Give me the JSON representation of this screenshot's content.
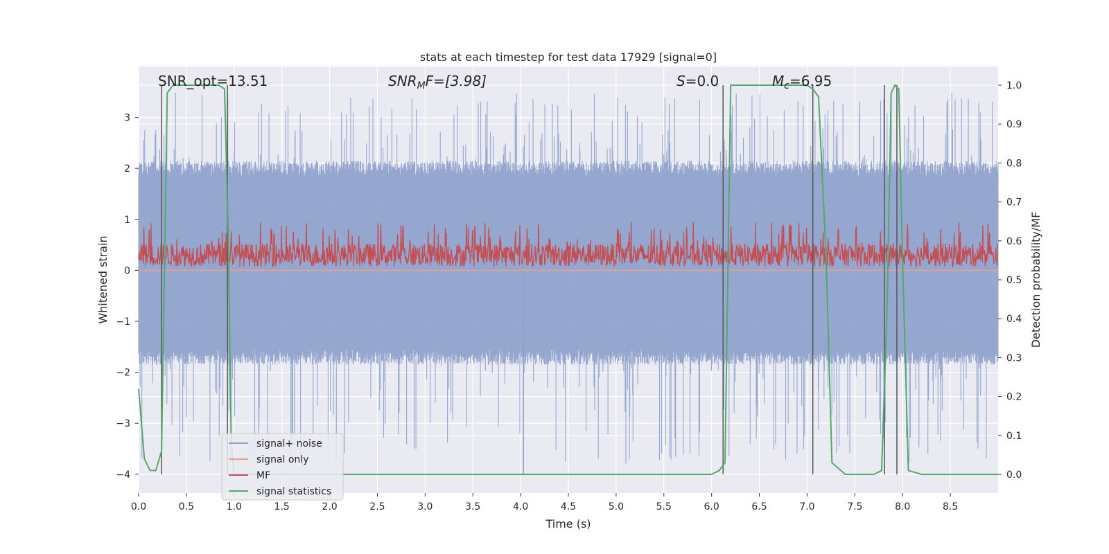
{
  "chart_data": {
    "type": "line",
    "title": "stats at each timestep for test data 17929 [signal=0]",
    "xlabel": "Time (s)",
    "ylabel": "Whitened strain",
    "ylabel_right": "Detection probability/MF",
    "xlim": [
      0.0,
      9.0
    ],
    "ylim": [
      -4.37,
      4.0
    ],
    "ylim_right": [
      -0.048,
      1.048
    ],
    "x_ticks": [
      "0.0",
      "0.5",
      "1.0",
      "1.5",
      "2.0",
      "2.5",
      "3.0",
      "3.5",
      "4.0",
      "4.5",
      "5.0",
      "5.5",
      "6.0",
      "6.5",
      "7.0",
      "7.5",
      "8.0",
      "8.5"
    ],
    "y_ticks": [
      "3",
      "2",
      "1",
      "0",
      "−1",
      "−2",
      "−3",
      "−4"
    ],
    "y_ticks_right": [
      "1.0",
      "0.9",
      "0.8",
      "0.7",
      "0.6",
      "0.5",
      "0.4",
      "0.3",
      "0.2",
      "0.1",
      "0.0"
    ],
    "annotations": {
      "snr_opt": "SNR_opt=13.51",
      "snr_mf_main": "SNR",
      "snr_mf_sub": "M",
      "snr_mf_tail": "F=[3.98]",
      "s_main": "S",
      "s_tail": "=0.0",
      "mc_main": "M",
      "mc_sub": "c",
      "mc_tail": "=6.95"
    },
    "noise": {
      "name": "signal+ noise",
      "color": "#8da0cb",
      "band": [
        -1.7,
        2.0
      ],
      "max_peak": 3.5,
      "min_trough": -3.8,
      "spike_x": 4.03,
      "spike_min": -4.0
    },
    "signal_only": {
      "name": "signal only",
      "color": "#e8a08a",
      "value": 0.0
    },
    "mf": {
      "name": "MF",
      "color": "#c44e52",
      "base": 0.3,
      "band": [
        0.05,
        0.95
      ]
    },
    "signal_statistics": {
      "name": "signal statistics",
      "color": "#55a868",
      "x": [
        0.0,
        0.06,
        0.12,
        0.18,
        0.24,
        0.3,
        0.36,
        0.42,
        0.48,
        0.54,
        0.6,
        0.66,
        0.72,
        0.78,
        0.84,
        0.9,
        0.94,
        0.97,
        1.0,
        1.06,
        1.12,
        1.5,
        2.0,
        3.0,
        4.0,
        5.0,
        6.0,
        6.08,
        6.14,
        6.2,
        6.5,
        6.8,
        7.0,
        7.06,
        7.12,
        7.2,
        7.26,
        7.4,
        7.6,
        7.7,
        7.78,
        7.84,
        7.88,
        7.92,
        7.96,
        8.0,
        8.06,
        8.2,
        8.5,
        9.0
      ],
      "y": [
        0.22,
        0.04,
        0.01,
        0.01,
        0.06,
        0.98,
        1.0,
        1.0,
        1.0,
        1.0,
        1.0,
        1.0,
        1.0,
        1.0,
        1.0,
        0.99,
        0.6,
        0.08,
        0.0,
        0.0,
        0.0,
        0.0,
        0.0,
        0.0,
        0.0,
        0.0,
        0.0,
        0.01,
        0.03,
        1.0,
        1.0,
        1.0,
        1.0,
        0.99,
        0.97,
        0.55,
        0.03,
        0.0,
        0.0,
        0.0,
        0.01,
        0.45,
        0.98,
        1.0,
        0.99,
        0.55,
        0.01,
        0.0,
        0.0,
        0.0
      ]
    },
    "vlines_x": [
      0.24,
      0.93,
      6.12,
      7.06,
      7.81,
      7.94
    ],
    "legend": [
      "signal+ noise",
      "signal only",
      "MF",
      "signal statistics"
    ],
    "legend_position": "lower-left",
    "grid": true
  }
}
